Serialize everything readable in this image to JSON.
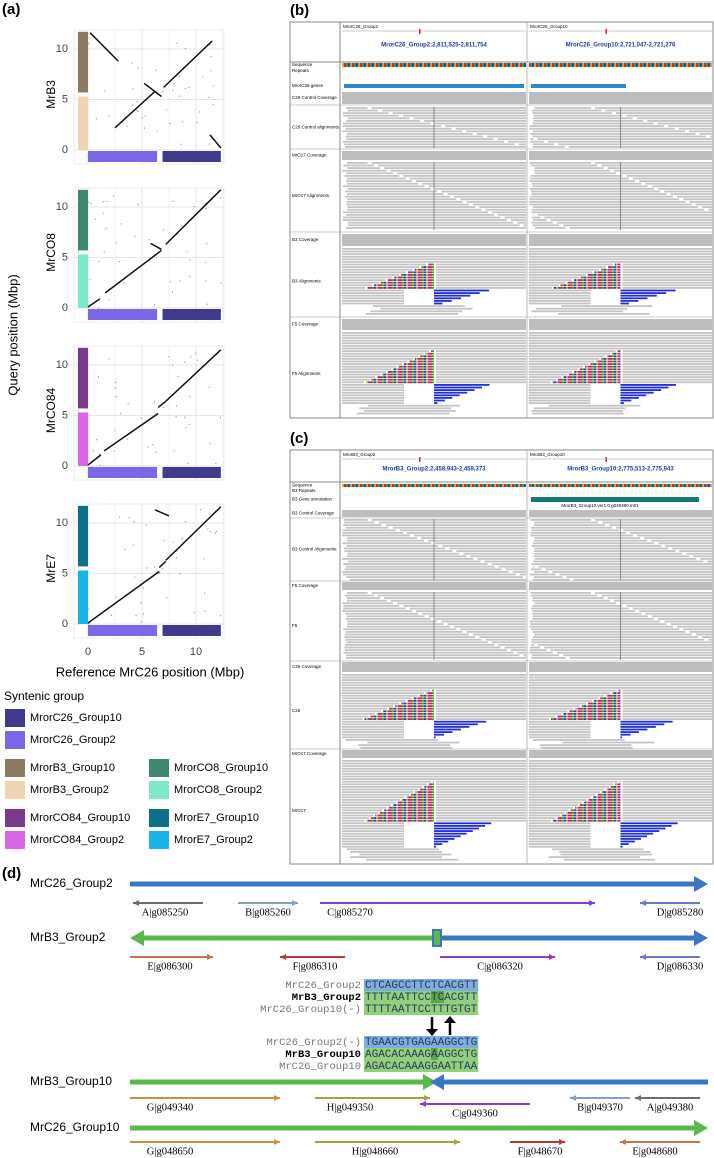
{
  "panel_a": {
    "label": "(a)",
    "y_title": "Query position (Mbp)",
    "x_title": "Reference MrC26 position (Mbp)",
    "xticks": [
      0,
      5,
      10
    ],
    "plots": [
      {
        "name": "MrB3",
        "yticks": [
          0,
          5,
          10
        ]
      },
      {
        "name": "MrCO8",
        "yticks": [
          0,
          5,
          10
        ]
      },
      {
        "name": "MrCO84",
        "yticks": [
          0,
          5,
          10
        ]
      },
      {
        "name": "MrE7",
        "yticks": [
          0,
          5,
          10
        ]
      }
    ],
    "legend": {
      "title": "Syntenic group",
      "items": [
        {
          "name": "MrorC26_Group10",
          "color": "#3f3a8c"
        },
        {
          "name": "MrorC26_Group2",
          "color": "#7b68e6"
        },
        {
          "name": "MrorB3_Group10",
          "color": "#8b7962"
        },
        {
          "name": "MrorCO8_Group10",
          "color": "#3f8770"
        },
        {
          "name": "MrorB3_Group2",
          "color": "#f1d4b4"
        },
        {
          "name": "MrorCO8_Group2",
          "color": "#7ee8c8"
        },
        {
          "name": "MrorCO84_Group10",
          "color": "#7a3a8b"
        },
        {
          "name": "MrorE7_Group10",
          "color": "#0f6e89"
        },
        {
          "name": "MrorCO84_Group2",
          "color": "#d866e6"
        },
        {
          "name": "MrorE7_Group2",
          "color": "#1ab4ea"
        }
      ]
    }
  },
  "panel_b": {
    "label": "(b)",
    "chrom": [
      "MrorC26_Group2",
      "MrorC26_Group10"
    ],
    "loci": [
      "MrorC26_Group2:2,811,525-2,811,754",
      "MrorC26_Group10:2,721,047-2,721,276"
    ],
    "tracks": [
      "Sequence",
      "Repeats",
      "MrorC26 genes",
      "C26 Control Coverage",
      "C26 Control alignments",
      "MrO17 Coverage",
      "MrO17 Alignments",
      "B3 Coverage",
      "B3 Alignments",
      "F5 Coverage",
      "F5 Alignments"
    ]
  },
  "panel_c": {
    "label": "(c)",
    "chrom": [
      "MrorB3_Group2",
      "MrorB3_Group10"
    ],
    "loci": [
      "MrorB3_Group2:2,458,943-2,459,373",
      "MrorB3_Group10:2,775,513-2,775,943"
    ],
    "gene_label": "MrorB3_Group10.ver1.0.g049380.m01",
    "tracks": [
      "Sequence",
      "B3 Repeats",
      "B3 Gene annotation",
      "B3 Control Coverage",
      "B3 Control Alignments",
      "F5 Coverage",
      "F5",
      "C26 Coverage",
      "C26",
      "MrO17 Coverage",
      "MrO17"
    ]
  },
  "panel_d": {
    "label": "(d)",
    "tracks": [
      {
        "name": "MrC26_Group2",
        "genes": [
          "A|g085250",
          "B|g085260",
          "C|g085270",
          "D|g085280"
        ]
      },
      {
        "name": "MrB3_Group2",
        "genes": [
          "E|g086300",
          "F|g086310",
          "C|g086320",
          "D|g086330"
        ]
      },
      {
        "name": "MrB3_Group10",
        "genes": [
          "G|g049340",
          "H|g049350",
          "C|g049360",
          "B|g049370",
          "A|g049380"
        ]
      },
      {
        "name": "MrC26_Group10",
        "genes": [
          "G|g048650",
          "H|g048660",
          "F|g048670",
          "E|g048680"
        ]
      }
    ],
    "alignments": [
      [
        {
          "name": "MrC26_Group2",
          "seq": "CTCAGCCTTCTCACGTT"
        },
        {
          "name": "MrB3_Group2",
          "seq": "TTTTAATTCCTCACGTT"
        },
        {
          "name": "MrC26_Group10(-)",
          "seq": "TTTTAATTCCTTTGTGT"
        }
      ],
      [
        {
          "name": "MrC26_Group2(-)",
          "seq": "TGAACGTGAGAAGGCTG"
        },
        {
          "name": "MrB3_Group10",
          "seq": "AGACACAAAGAAGGCTG"
        },
        {
          "name": "MrC26_Group10",
          "seq": "AGACACAAAGGAATTAA"
        }
      ]
    ]
  }
}
